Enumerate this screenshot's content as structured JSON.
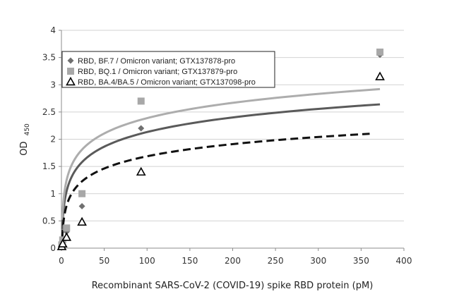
{
  "chart_data": {
    "type": "scatter",
    "xlabel": "Recombinant SARS-CoV-2 (COVID-19) spike RBD protein (pM)",
    "ylabel_main": "OD",
    "ylabel_sub": "450",
    "xlim": [
      0,
      400
    ],
    "ylim": [
      0,
      4
    ],
    "x_ticks": [
      "0",
      "50",
      "100",
      "150",
      "200",
      "250",
      "300",
      "350",
      "400"
    ],
    "y_ticks": [
      "0",
      "0.5",
      "1",
      "1.5",
      "2",
      "2.5",
      "3",
      "3.5",
      "4"
    ],
    "grid": "horizontal",
    "legend_position": "top-left",
    "series": [
      {
        "name": "RBD, BF.7 / Omicron variant; GTX137878-pro",
        "marker": "diamond",
        "color": "#707070",
        "line_color": "#5a5a5a",
        "line_style": "solid",
        "x": [
          0.4,
          1.5,
          6,
          24,
          93,
          372
        ],
        "y": [
          0.05,
          0.12,
          0.3,
          0.77,
          2.2,
          3.55
        ],
        "fit": {
          "x_start": 1,
          "x_end": 372,
          "y_start": 0.35,
          "y_end": 2.64
        }
      },
      {
        "name": "RBD, BQ.1 / Omicron variant; GTX137879-pro",
        "marker": "square",
        "color": "#a8a8a8",
        "line_color": "#adadad",
        "line_style": "solid",
        "x": [
          0.4,
          1.5,
          6,
          24,
          93,
          372
        ],
        "y": [
          0.06,
          0.15,
          0.37,
          1.0,
          2.7,
          3.6
        ],
        "fit": {
          "x_start": 1,
          "x_end": 372,
          "y_start": 0.52,
          "y_end": 2.92
        }
      },
      {
        "name": "RBD, BA.4/BA.5 / Omicron variant; GTX137098-pro",
        "marker": "triangle",
        "color": "#000000",
        "line_color": "#111111",
        "line_style": "dashed",
        "x": [
          0.4,
          1.5,
          6,
          24,
          93,
          372
        ],
        "y": [
          0.03,
          0.08,
          0.2,
          0.48,
          1.4,
          3.15
        ],
        "fit": {
          "x_start": 1,
          "x_end": 360,
          "y_start": 0.2,
          "y_end": 2.1
        }
      }
    ]
  }
}
